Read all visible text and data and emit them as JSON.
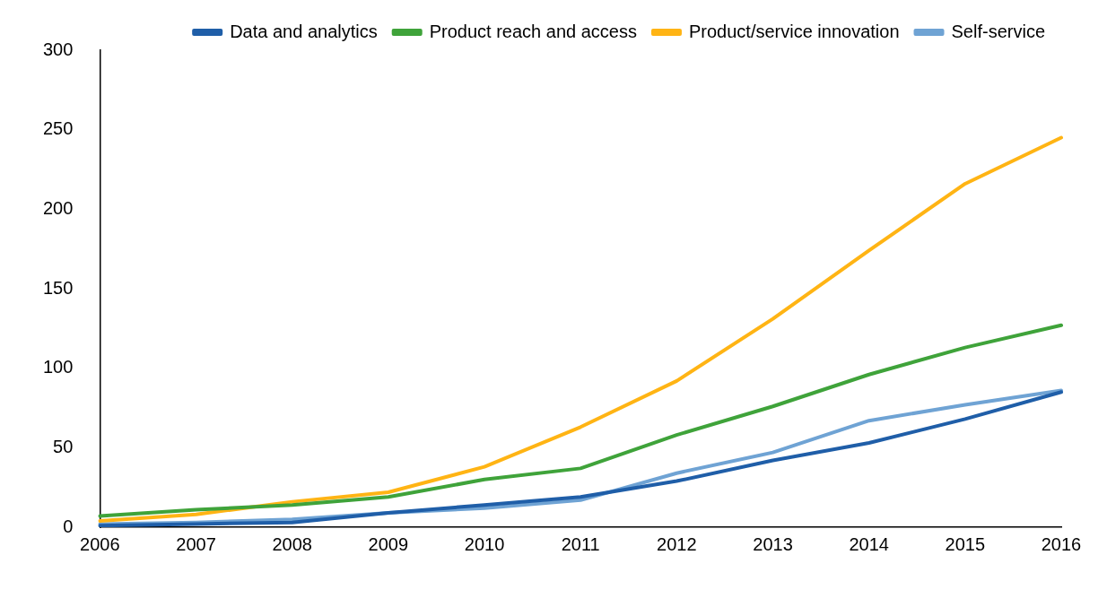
{
  "chart_data": {
    "type": "line",
    "categories": [
      "2006",
      "2007",
      "2008",
      "2009",
      "2010",
      "2011",
      "2012",
      "2013",
      "2014",
      "2015",
      "2016"
    ],
    "series": [
      {
        "name": "Data and analytics",
        "color": "#1f5ea8",
        "values": [
          1,
          2,
          3,
          9,
          14,
          19,
          29,
          42,
          53,
          68,
          85
        ]
      },
      {
        "name": "Product reach and access",
        "color": "#3fa33a",
        "values": [
          7,
          11,
          14,
          19,
          30,
          37,
          58,
          76,
          96,
          113,
          127
        ]
      },
      {
        "name": "Product/service innovation",
        "color": "#ffb414",
        "values": [
          4,
          8,
          16,
          22,
          38,
          63,
          92,
          131,
          174,
          216,
          245
        ]
      },
      {
        "name": "Self-service",
        "color": "#6fa3d4",
        "values": [
          2,
          3,
          5,
          9,
          12,
          17,
          34,
          47,
          67,
          77,
          86
        ]
      }
    ],
    "ylim": [
      0,
      300
    ],
    "yticks": [
      0,
      50,
      100,
      150,
      200,
      250,
      300
    ],
    "grid": false,
    "legend": "top",
    "marker": "none",
    "line_style": "solid"
  }
}
